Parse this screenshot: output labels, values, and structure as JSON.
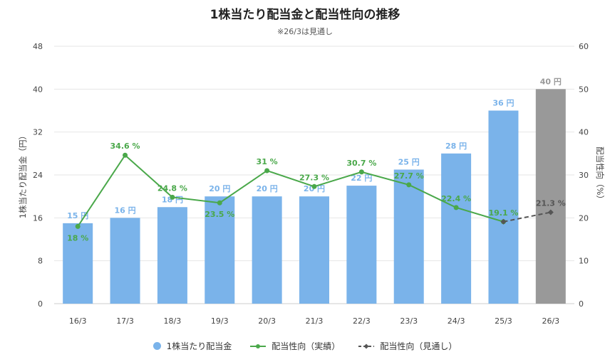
{
  "title": "1株当たり配当金と配当性向の推移",
  "subtitle": "※26/3は見通し",
  "chart_data": {
    "type": "bar",
    "categories": [
      "16/3",
      "17/3",
      "18/3",
      "19/3",
      "20/3",
      "21/3",
      "22/3",
      "23/3",
      "24/3",
      "25/3",
      "26/3"
    ],
    "ylabel_left": "1株当たり配当金（円）",
    "ylabel_right": "配当性向（%）",
    "ylim_left": [
      0,
      48
    ],
    "ylim_right": [
      0,
      60
    ],
    "yticks_left": [
      0,
      8,
      16,
      24,
      32,
      40,
      48
    ],
    "yticks_right": [
      0,
      10,
      20,
      30,
      40,
      50,
      60
    ],
    "grid": true,
    "legend_position": "bottom",
    "colors": {
      "bar": "#7ab3ea",
      "bar_forecast": "#999999",
      "line_actual": "#4aa84a",
      "line_forecast": "#555555",
      "bar_label": "#7ab3ea",
      "bar_label_forecast": "#999999"
    },
    "series": [
      {
        "name": "1株当たり配当金",
        "kind": "bar",
        "axis": "left",
        "values": [
          15,
          16,
          18,
          20,
          20,
          20,
          22,
          25,
          28,
          36,
          40
        ],
        "labels": [
          "15 円",
          "16 円",
          "18 円",
          "20 円",
          "20 円",
          "20 円",
          "22 円",
          "25 円",
          "28 円",
          "36 円",
          "40 円"
        ],
        "forecast_index": 10
      },
      {
        "name": "配当性向（実績）",
        "kind": "line",
        "axis": "right",
        "values": [
          18,
          34.6,
          24.8,
          23.5,
          31,
          27.3,
          30.7,
          27.7,
          22.4,
          19.1,
          null
        ],
        "labels": [
          "18 %",
          "34.6 %",
          "24.8 %",
          "23.5 %",
          "31 %",
          "27.3 %",
          "30.7 %",
          "27.7 %",
          "22.4 %",
          "19.1 %",
          ""
        ]
      },
      {
        "name": "配当性向（見通し）",
        "kind": "line-dashed",
        "axis": "right",
        "values": [
          null,
          null,
          null,
          null,
          null,
          null,
          null,
          null,
          null,
          19.1,
          21.3
        ],
        "labels": [
          "",
          "",
          "",
          "",
          "",
          "",
          "",
          "",
          "",
          "",
          "21.3 %"
        ]
      }
    ]
  },
  "legend": {
    "items": [
      "1株当たり配当金",
      "配当性向（実績）",
      "配当性向（見通し）"
    ]
  }
}
